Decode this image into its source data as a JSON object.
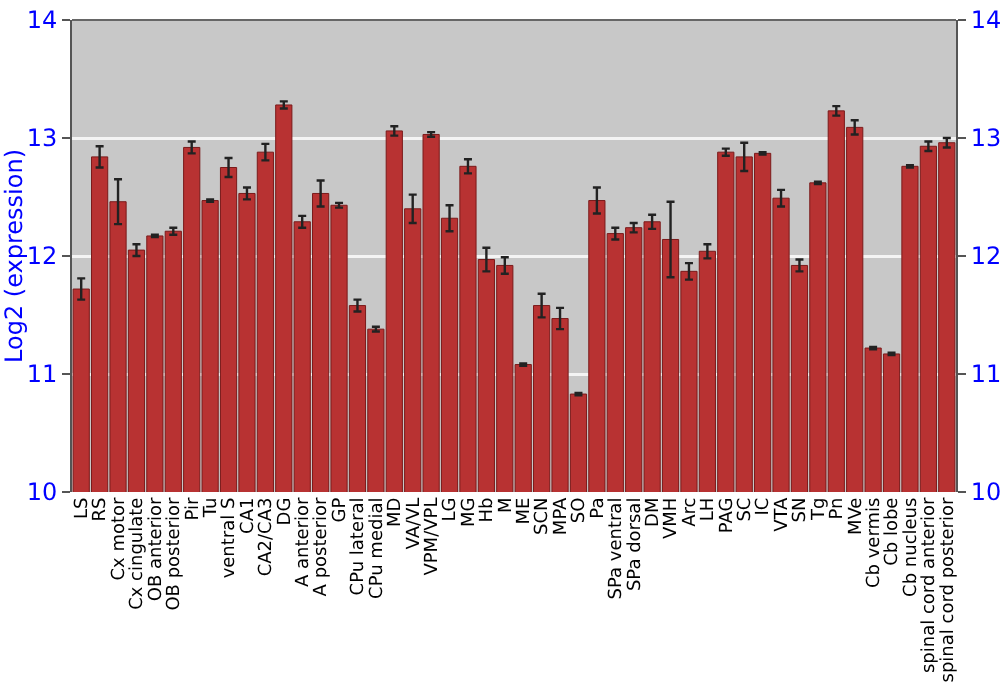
{
  "chart_data": {
    "type": "bar",
    "ylabel": "Log2 (expression)",
    "categories": [
      "LS",
      "RS",
      "Cx motor",
      "Cx cingulate",
      "OB anterior",
      "OB posterior",
      "Pir",
      "Tu",
      "ventral S",
      "CA1",
      "CA2/CA3",
      "DG",
      "A anterior",
      "A posterior",
      "GP",
      "CPu lateral",
      "CPu medial",
      "MD",
      "VA/VL",
      "VPM/VPL",
      "LG",
      "MG",
      "Hb",
      "M",
      "ME",
      "SCN",
      "MPA",
      "SO",
      "Pa",
      "SPa ventral",
      "SPa dorsal",
      "DM",
      "VMH",
      "Arc",
      "LH",
      "PAG",
      "SC",
      "IC",
      "VTA",
      "SN",
      "Tg",
      "Pn",
      "MVe",
      "Cb vermis",
      "Cb lobe",
      "Cb nucleus",
      "spinal cord anterior",
      "spinal cord posterior"
    ],
    "values": [
      11.72,
      12.84,
      12.46,
      12.05,
      12.17,
      12.21,
      12.92,
      12.47,
      12.75,
      12.53,
      12.88,
      13.28,
      12.29,
      12.53,
      12.43,
      11.58,
      11.38,
      13.06,
      12.4,
      13.03,
      12.32,
      12.76,
      11.97,
      11.92,
      11.08,
      11.58,
      11.47,
      10.83,
      12.47,
      12.19,
      12.24,
      12.29,
      12.14,
      11.87,
      12.04,
      12.88,
      12.84,
      12.87,
      12.49,
      11.92,
      12.62,
      13.23,
      13.09,
      11.22,
      11.17,
      12.76,
      12.93,
      12.96
    ],
    "errors": [
      0.09,
      0.09,
      0.19,
      0.05,
      0.01,
      0.03,
      0.05,
      0.01,
      0.08,
      0.05,
      0.07,
      0.03,
      0.05,
      0.11,
      0.02,
      0.05,
      0.02,
      0.04,
      0.12,
      0.02,
      0.11,
      0.06,
      0.1,
      0.07,
      0.01,
      0.1,
      0.09,
      0.01,
      0.11,
      0.05,
      0.04,
      0.06,
      0.32,
      0.07,
      0.06,
      0.03,
      0.12,
      0.01,
      0.07,
      0.05,
      0.01,
      0.04,
      0.06,
      0.01,
      0.01,
      0.01,
      0.04,
      0.04
    ],
    "color": "#b83232",
    "ylim": [
      10,
      14
    ],
    "yticks": [
      10,
      11,
      12,
      13,
      14
    ],
    "y2lim": [
      10,
      14
    ],
    "y2ticks": [
      10,
      11,
      12,
      13,
      14
    ],
    "grid": "y"
  }
}
